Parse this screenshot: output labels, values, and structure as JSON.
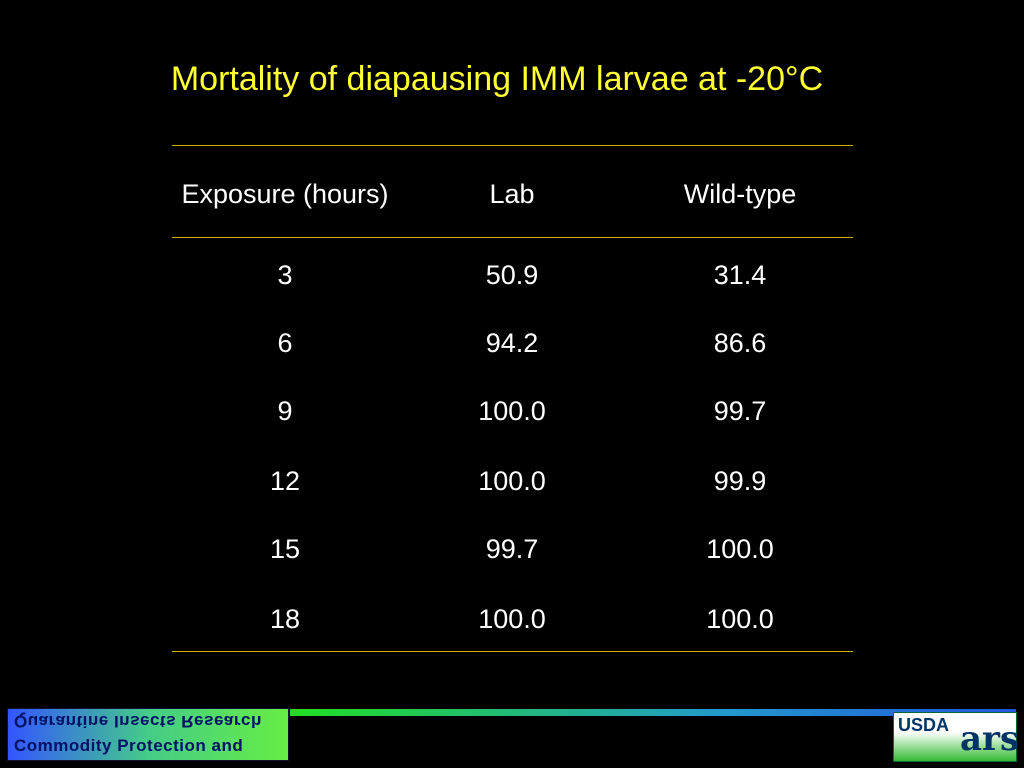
{
  "title": "Mortality of diapausing IMM larvae at -20°C",
  "table": {
    "header": [
      "Exposure (hours)",
      "Lab",
      "Wild-type"
    ],
    "rows": [
      [
        "3",
        "50.9",
        "31.4"
      ],
      [
        "6",
        "94.2",
        "86.6"
      ],
      [
        "9",
        "100.0",
        "99.7"
      ],
      [
        "12",
        "100.0",
        "99.9"
      ],
      [
        "15",
        "99.7",
        "100.0"
      ],
      [
        "18",
        "100.0",
        "100.0"
      ]
    ]
  },
  "footer": {
    "left_logo": {
      "line1": "Quarantine Insects Research",
      "line2": "Commodity Protection and"
    },
    "right_logo": {
      "top": "USDA",
      "bottom": "ars"
    }
  }
}
